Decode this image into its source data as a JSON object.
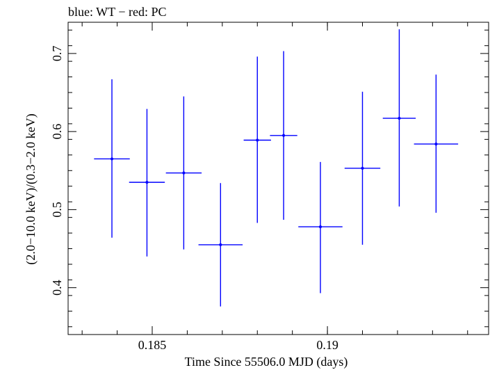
{
  "chart_data": {
    "type": "scatter",
    "title": "blue: WT − red: PC",
    "xlabel": "Time Since 55506.0 MJD (days)",
    "ylabel": "(2.0−10.0 keV)/(0.3−2.0 keV)",
    "xlim": [
      0.1826,
      0.1946
    ],
    "ylim": [
      0.34,
      0.74
    ],
    "x_ticks": [
      0.185,
      0.19
    ],
    "x_tick_labels": [
      "0.185",
      "0.19"
    ],
    "y_ticks": [
      0.4,
      0.5,
      0.6,
      0.7
    ],
    "y_tick_labels": [
      "0.4",
      "0.5",
      "0.6",
      "0.7"
    ],
    "grid": false,
    "legend": null,
    "series": [
      {
        "color": "#0000ff",
        "points": [
          {
            "x": 0.18385,
            "xerr": 0.00051,
            "y": 0.565,
            "y_low": 0.464,
            "y_high": 0.667
          },
          {
            "x": 0.18485,
            "xerr": 0.00051,
            "y": 0.535,
            "y_low": 0.44,
            "y_high": 0.629
          },
          {
            "x": 0.1859,
            "xerr": 0.00051,
            "y": 0.547,
            "y_low": 0.449,
            "y_high": 0.645
          },
          {
            "x": 0.18695,
            "xerr": 0.00063,
            "y": 0.455,
            "y_low": 0.376,
            "y_high": 0.534
          },
          {
            "x": 0.188,
            "xerr": 0.00039,
            "y": 0.589,
            "y_low": 0.483,
            "y_high": 0.696
          },
          {
            "x": 0.18875,
            "xerr": 0.00039,
            "y": 0.595,
            "y_low": 0.487,
            "y_high": 0.703
          },
          {
            "x": 0.1898,
            "xerr": 0.00063,
            "y": 0.478,
            "y_low": 0.393,
            "y_high": 0.561
          },
          {
            "x": 0.191,
            "xerr": 0.00051,
            "y": 0.553,
            "y_low": 0.455,
            "y_high": 0.651
          },
          {
            "x": 0.19205,
            "xerr": 0.00047,
            "y": 0.617,
            "y_low": 0.504,
            "y_high": 0.731
          },
          {
            "x": 0.1931,
            "xerr": 0.00063,
            "y": 0.584,
            "y_low": 0.496,
            "y_high": 0.673
          }
        ]
      }
    ]
  }
}
